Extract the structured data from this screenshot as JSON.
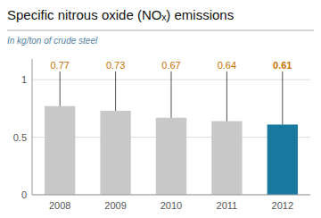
{
  "chart_data": {
    "type": "bar",
    "title": "Specific nitrous oxide (NOₓ) emissions",
    "subtitle": "In kg/ton of crude steel",
    "categories": [
      "2008",
      "2009",
      "2010",
      "2011",
      "2012"
    ],
    "values": [
      0.77,
      0.73,
      0.67,
      0.64,
      0.61
    ],
    "colors": [
      "#c8c8c8",
      "#c8c8c8",
      "#c8c8c8",
      "#c8c8c8",
      "#1878a0"
    ],
    "ylim": [
      0,
      1.18
    ],
    "yticks": [
      0,
      0.5,
      1
    ],
    "grid": true,
    "data_labels": true
  }
}
